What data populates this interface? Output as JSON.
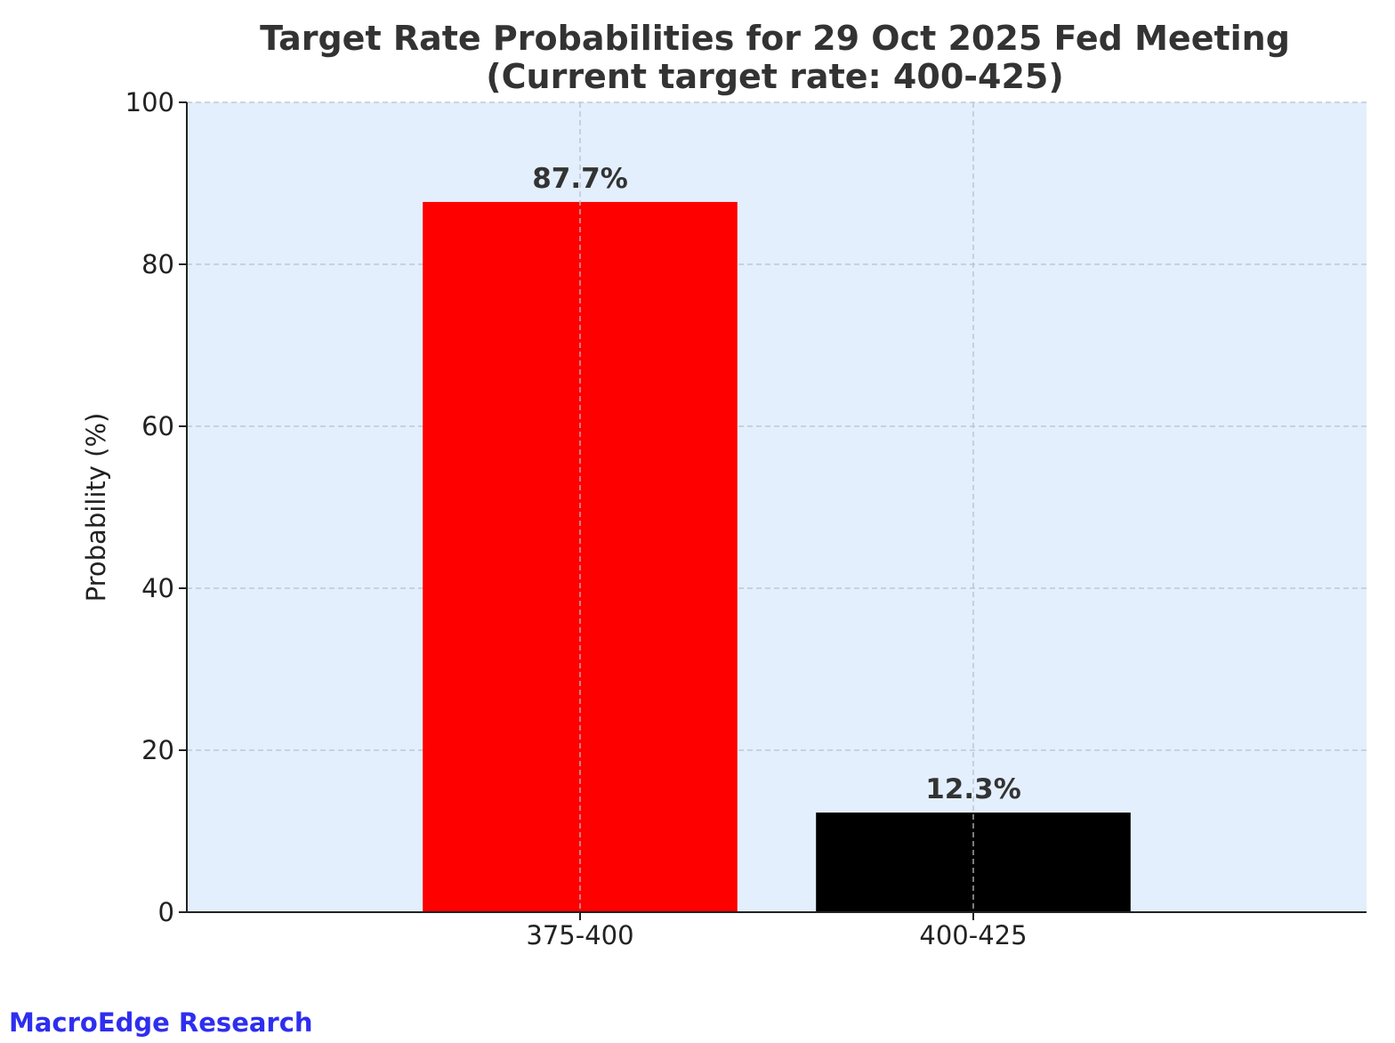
{
  "chart_data": {
    "type": "bar",
    "title": "Target Rate Probabilities for 29 Oct 2025 Fed Meeting",
    "subtitle": "(Current target rate: 400-425)",
    "xlabel": "",
    "ylabel": "Probability (%)",
    "categories": [
      "375-400",
      "400-425"
    ],
    "values": [
      87.7,
      12.3
    ],
    "data_labels": [
      "87.7%",
      "12.3%"
    ],
    "bar_colors": [
      "#ff0000",
      "#000000"
    ],
    "ylim": [
      0,
      100
    ],
    "yticks": [
      0,
      20,
      40,
      60,
      80,
      100
    ],
    "ytick_labels": [
      "0",
      "20",
      "40",
      "60",
      "80",
      "100"
    ],
    "grid": true,
    "plot_background": "#e3effd"
  },
  "watermark": {
    "text": "MacroEdge Research",
    "color": "#2e2ef0"
  }
}
